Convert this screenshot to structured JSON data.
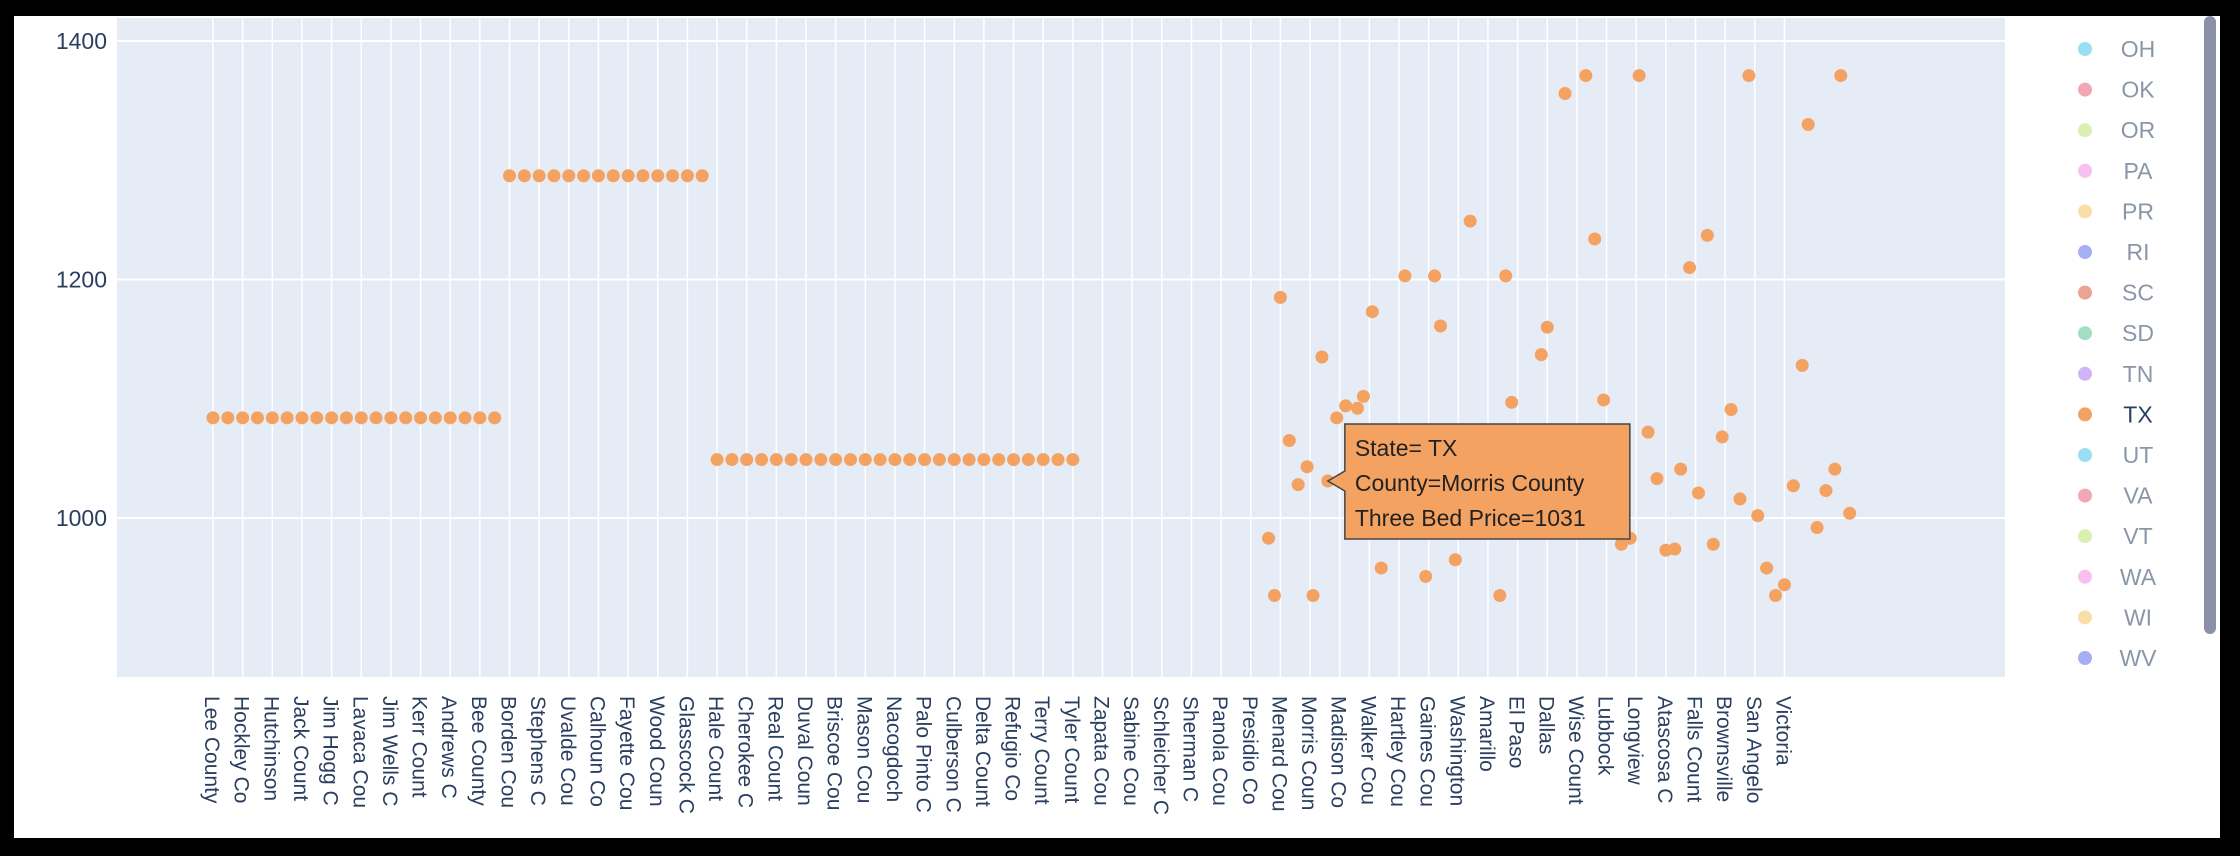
{
  "chart_data": {
    "type": "scatter",
    "title": "",
    "xlabel": "",
    "ylabel": "",
    "ylim": [
      870,
      1420
    ],
    "y_ticks": [
      1000,
      1200,
      1400
    ],
    "grid": true,
    "legend_position": "right",
    "x_tick_labels": [
      "Lee County",
      "Hockley Co",
      "Hutchinson",
      "Jack Count",
      "Jim Hogg C",
      "Lavaca Cou",
      "Jim Wells C",
      "Kerr Count",
      "Andrews C",
      "Bee County",
      "Borden Cou",
      "Stephens C",
      "Uvalde Cou",
      "Calhoun Co",
      "Fayette Cou",
      "Wood Coun",
      "Glasscock C",
      "Hale Count",
      "Cherokee C",
      "Real Count",
      "Duval Coun",
      "Briscoe Cou",
      "Mason Cou",
      "Nacogdoch",
      "Palo Pinto C",
      "Culberson C",
      "Delta Count",
      "Refugio Co",
      "Terry Count",
      "Tyler Count",
      "Zapata Cou",
      "Sabine Cou",
      "Schleicher C",
      "Sherman C",
      "Panola Cou",
      "Presidio Co",
      "Menard Cou",
      "Morris Coun",
      "Madison Co",
      "Walker Cou",
      "Hartley Cou",
      "Gaines Cou",
      "Washington",
      "Amarillo",
      "El Paso",
      "Dallas",
      "Wise Count",
      "Lubbock",
      "Longview",
      "Atascosa C",
      "Falls Count",
      "Brownsville",
      "San Angelo",
      "Victoria"
    ],
    "series": [
      {
        "name": "TX",
        "color": "#f4a261",
        "points": [
          {
            "x": 0.0,
            "y": 1084
          },
          {
            "x": 0.5,
            "y": 1084
          },
          {
            "x": 1.0,
            "y": 1084
          },
          {
            "x": 1.5,
            "y": 1084
          },
          {
            "x": 2.0,
            "y": 1084
          },
          {
            "x": 2.5,
            "y": 1084
          },
          {
            "x": 3.0,
            "y": 1084
          },
          {
            "x": 3.5,
            "y": 1084
          },
          {
            "x": 4.0,
            "y": 1084
          },
          {
            "x": 4.5,
            "y": 1084
          },
          {
            "x": 5.0,
            "y": 1084
          },
          {
            "x": 5.5,
            "y": 1084
          },
          {
            "x": 6.0,
            "y": 1084
          },
          {
            "x": 6.5,
            "y": 1084
          },
          {
            "x": 7.0,
            "y": 1084
          },
          {
            "x": 7.5,
            "y": 1084
          },
          {
            "x": 8.0,
            "y": 1084
          },
          {
            "x": 8.5,
            "y": 1084
          },
          {
            "x": 9.0,
            "y": 1084
          },
          {
            "x": 9.5,
            "y": 1084
          },
          {
            "x": 10.0,
            "y": 1287
          },
          {
            "x": 10.5,
            "y": 1287
          },
          {
            "x": 11.0,
            "y": 1287
          },
          {
            "x": 11.5,
            "y": 1287
          },
          {
            "x": 12.0,
            "y": 1287
          },
          {
            "x": 12.5,
            "y": 1287
          },
          {
            "x": 13.0,
            "y": 1287
          },
          {
            "x": 13.5,
            "y": 1287
          },
          {
            "x": 14.0,
            "y": 1287
          },
          {
            "x": 14.5,
            "y": 1287
          },
          {
            "x": 15.0,
            "y": 1287
          },
          {
            "x": 15.5,
            "y": 1287
          },
          {
            "x": 16.0,
            "y": 1287
          },
          {
            "x": 16.5,
            "y": 1287
          },
          {
            "x": 17.0,
            "y": 1049
          },
          {
            "x": 17.5,
            "y": 1049
          },
          {
            "x": 18.0,
            "y": 1049
          },
          {
            "x": 18.5,
            "y": 1049
          },
          {
            "x": 19.0,
            "y": 1049
          },
          {
            "x": 19.5,
            "y": 1049
          },
          {
            "x": 20.0,
            "y": 1049
          },
          {
            "x": 20.5,
            "y": 1049
          },
          {
            "x": 21.0,
            "y": 1049
          },
          {
            "x": 21.5,
            "y": 1049
          },
          {
            "x": 22.0,
            "y": 1049
          },
          {
            "x": 22.5,
            "y": 1049
          },
          {
            "x": 23.0,
            "y": 1049
          },
          {
            "x": 23.5,
            "y": 1049
          },
          {
            "x": 24.0,
            "y": 1049
          },
          {
            "x": 24.5,
            "y": 1049
          },
          {
            "x": 25.0,
            "y": 1049
          },
          {
            "x": 25.5,
            "y": 1049
          },
          {
            "x": 26.0,
            "y": 1049
          },
          {
            "x": 26.5,
            "y": 1049
          },
          {
            "x": 27.0,
            "y": 1049
          },
          {
            "x": 27.5,
            "y": 1049
          },
          {
            "x": 28.0,
            "y": 1049
          },
          {
            "x": 28.5,
            "y": 1049
          },
          {
            "x": 29.0,
            "y": 1049
          },
          {
            "x": 35.6,
            "y": 983
          },
          {
            "x": 35.8,
            "y": 935
          },
          {
            "x": 36.0,
            "y": 1185
          },
          {
            "x": 36.3,
            "y": 1065
          },
          {
            "x": 36.6,
            "y": 1028
          },
          {
            "x": 36.9,
            "y": 1043
          },
          {
            "x": 37.1,
            "y": 935
          },
          {
            "x": 37.4,
            "y": 1135
          },
          {
            "x": 37.6,
            "y": 1031
          },
          {
            "x": 37.9,
            "y": 1084
          },
          {
            "x": 38.2,
            "y": 1094
          },
          {
            "x": 38.6,
            "y": 1092
          },
          {
            "x": 38.8,
            "y": 1102
          },
          {
            "x": 39.1,
            "y": 1173
          },
          {
            "x": 39.4,
            "y": 958
          },
          {
            "x": 40.2,
            "y": 1203
          },
          {
            "x": 40.9,
            "y": 951
          },
          {
            "x": 41.2,
            "y": 1203
          },
          {
            "x": 41.4,
            "y": 1161
          },
          {
            "x": 41.9,
            "y": 965
          },
          {
            "x": 42.4,
            "y": 1249
          },
          {
            "x": 43.4,
            "y": 935
          },
          {
            "x": 43.6,
            "y": 1203
          },
          {
            "x": 43.8,
            "y": 1097
          },
          {
            "x": 44.8,
            "y": 1137
          },
          {
            "x": 45.0,
            "y": 1160
          },
          {
            "x": 45.6,
            "y": 1356
          },
          {
            "x": 46.3,
            "y": 1371
          },
          {
            "x": 46.6,
            "y": 1234
          },
          {
            "x": 46.9,
            "y": 1099
          },
          {
            "x": 47.5,
            "y": 978
          },
          {
            "x": 47.8,
            "y": 983
          },
          {
            "x": 48.1,
            "y": 1371
          },
          {
            "x": 48.4,
            "y": 1072
          },
          {
            "x": 48.7,
            "y": 1033
          },
          {
            "x": 49.0,
            "y": 973
          },
          {
            "x": 49.3,
            "y": 974
          },
          {
            "x": 49.5,
            "y": 1041
          },
          {
            "x": 49.8,
            "y": 1210
          },
          {
            "x": 50.1,
            "y": 1021
          },
          {
            "x": 50.4,
            "y": 1237
          },
          {
            "x": 50.6,
            "y": 978
          },
          {
            "x": 50.9,
            "y": 1068
          },
          {
            "x": 51.2,
            "y": 1091
          },
          {
            "x": 51.5,
            "y": 1016
          },
          {
            "x": 51.8,
            "y": 1371
          },
          {
            "x": 52.1,
            "y": 1002
          },
          {
            "x": 52.4,
            "y": 958
          },
          {
            "x": 52.7,
            "y": 935
          },
          {
            "x": 53.0,
            "y": 944
          },
          {
            "x": 53.3,
            "y": 1027
          },
          {
            "x": 53.6,
            "y": 1128
          },
          {
            "x": 53.8,
            "y": 1330
          },
          {
            "x": 54.1,
            "y": 992
          },
          {
            "x": 54.4,
            "y": 1023
          },
          {
            "x": 54.7,
            "y": 1041
          },
          {
            "x": 54.9,
            "y": 1371
          },
          {
            "x": 55.2,
            "y": 1004
          }
        ]
      }
    ]
  },
  "legend": {
    "items": [
      {
        "label": "OH",
        "color": "#99def3"
      },
      {
        "label": "OK",
        "color": "#f2a7b5"
      },
      {
        "label": "OR",
        "color": "#d9f0b0"
      },
      {
        "label": "PA",
        "color": "#f8c0f0"
      },
      {
        "label": "PR",
        "color": "#f9dfa7"
      },
      {
        "label": "RI",
        "color": "#a7aef6"
      },
      {
        "label": "SC",
        "color": "#eda394"
      },
      {
        "label": "SD",
        "color": "#a2dec3"
      },
      {
        "label": "TN",
        "color": "#d1b4f7"
      },
      {
        "label": "TX",
        "color": "#f4a261",
        "active": true
      },
      {
        "label": "UT",
        "color": "#99def3"
      },
      {
        "label": "VA",
        "color": "#f2a7b5"
      },
      {
        "label": "VT",
        "color": "#d9f0b0"
      },
      {
        "label": "WA",
        "color": "#f8c0f0"
      },
      {
        "label": "WI",
        "color": "#f9dfa7"
      },
      {
        "label": "WV",
        "color": "#a7aef6"
      }
    ]
  },
  "tooltip": {
    "line1": "State= TX",
    "line2": "County=Morris County",
    "line3": "Three Bed Price=1031",
    "color": "#f4a261",
    "anchor_point_x": 37.6,
    "anchor_point_y": 1031
  },
  "colors": {
    "plot_bg": "#e5ecf6",
    "grid": "#ffffff",
    "axis_text": "#2a3f5f",
    "scrollbar": "#8a91a8"
  }
}
